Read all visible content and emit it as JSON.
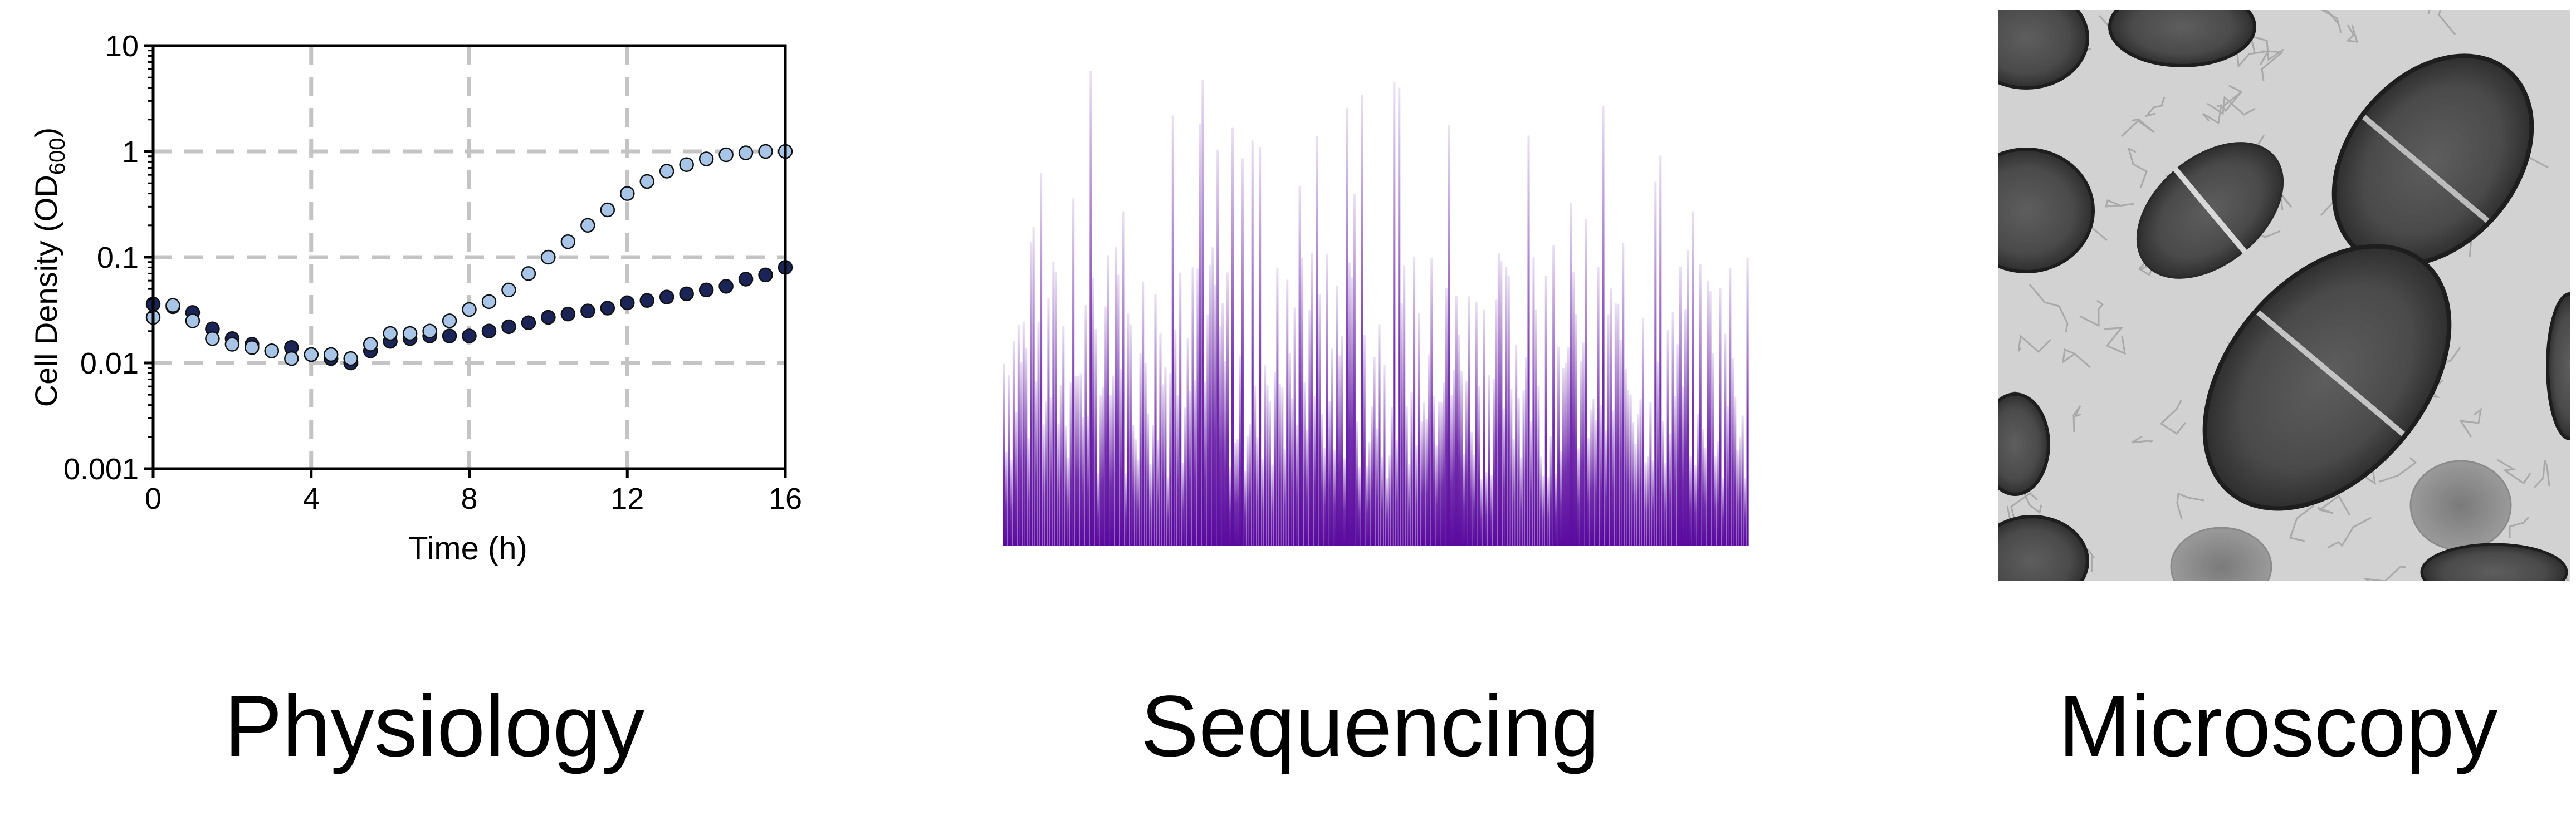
{
  "chart_data": {
    "type": "scatter",
    "xlabel": "Time (h)",
    "ylabel_main": "Cell Density (OD",
    "ylabel_sub": "600",
    "ylabel_close": ")",
    "xlim": [
      0,
      16
    ],
    "ylim": [
      0.001,
      10
    ],
    "yscale": "log",
    "xticks": [
      0,
      4,
      8,
      12,
      16
    ],
    "xtick_labels": [
      "0",
      "4",
      "8",
      "12",
      "16"
    ],
    "yticks": [
      0.001,
      0.01,
      0.1,
      1,
      10
    ],
    "ytick_labels": [
      "0.001",
      "0.01",
      "0.1",
      "1",
      "10"
    ],
    "grid": "dashed",
    "series": [
      {
        "color": "#1a2456",
        "x": [
          0,
          0.5,
          1,
          1.5,
          2,
          2.5,
          3,
          3.5,
          4,
          4.5,
          5,
          5.5,
          6,
          6.5,
          7,
          7.5,
          8,
          8.5,
          9,
          9.5,
          10,
          10.5,
          11,
          11.5,
          12,
          12.5,
          13,
          13.5,
          14,
          14.5,
          15,
          15.5,
          16
        ],
        "y": [
          0.036,
          0.034,
          0.03,
          0.021,
          0.017,
          0.015,
          0.013,
          0.014,
          0.012,
          0.011,
          0.01,
          0.013,
          0.016,
          0.017,
          0.018,
          0.018,
          0.018,
          0.02,
          0.022,
          0.024,
          0.027,
          0.029,
          0.031,
          0.033,
          0.037,
          0.039,
          0.042,
          0.045,
          0.049,
          0.053,
          0.062,
          0.068,
          0.08
        ]
      },
      {
        "color": "#a8c4e6",
        "x": [
          0,
          0.5,
          1,
          1.5,
          2,
          2.5,
          3,
          3.5,
          4,
          4.5,
          5,
          5.5,
          6,
          6.5,
          7,
          7.5,
          8,
          8.5,
          9,
          9.5,
          10,
          10.5,
          11,
          11.5,
          12,
          12.5,
          13,
          13.5,
          14,
          14.5,
          15,
          15.5,
          16
        ],
        "y": [
          0.027,
          0.035,
          0.025,
          0.017,
          0.015,
          0.014,
          0.013,
          0.011,
          0.012,
          0.012,
          0.011,
          0.015,
          0.019,
          0.019,
          0.02,
          0.025,
          0.032,
          0.038,
          0.049,
          0.07,
          0.1,
          0.14,
          0.2,
          0.28,
          0.4,
          0.52,
          0.65,
          0.75,
          0.85,
          0.93,
          0.97,
          1.0,
          1.0
        ]
      }
    ],
    "legend": "none"
  },
  "sequencing": {
    "color": "#5a0a9e",
    "bar_count": 300,
    "seed": 7
  },
  "captions": {
    "physiology": "Physiology",
    "sequencing": "Sequencing",
    "microscopy": "Microscopy"
  }
}
